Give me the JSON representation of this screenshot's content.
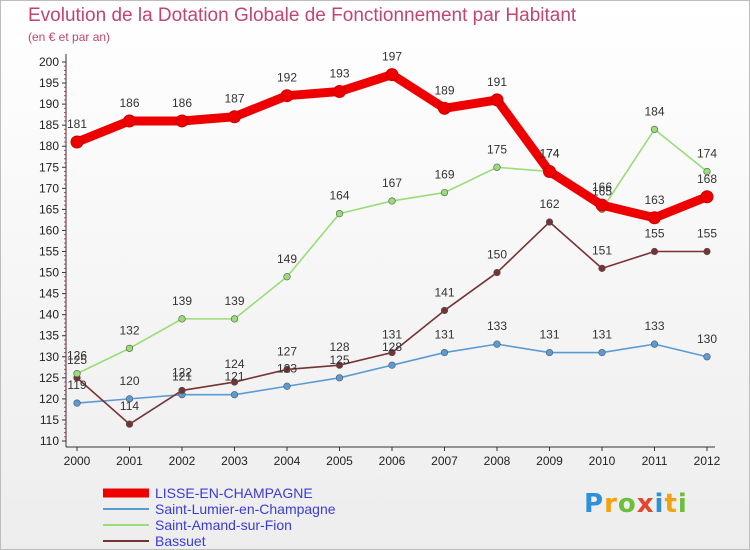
{
  "chart_data": {
    "type": "line",
    "title": "Evolution de la Dotation Globale de Fonctionnement par Habitant",
    "subtitle": "(en € et par an)",
    "xlabel": "",
    "ylabel": "",
    "x": [
      "2000",
      "2001",
      "2002",
      "2003",
      "2004",
      "2005",
      "2006",
      "2007",
      "2008",
      "2009",
      "2010",
      "2011",
      "2012"
    ],
    "ylim": [
      110,
      200
    ],
    "yticks": [
      "110",
      "115",
      "120",
      "125",
      "130",
      "135",
      "140",
      "145",
      "150",
      "155",
      "160",
      "165",
      "170",
      "175",
      "180",
      "185",
      "190",
      "195",
      "200"
    ],
    "grid": false,
    "legend_position": "bottom-left",
    "series": [
      {
        "name": "LISSE-EN-CHAMPAGNE",
        "color": "#ee0000",
        "values": [
          181,
          186,
          186,
          187,
          192,
          193,
          197,
          189,
          191,
          174,
          166,
          163,
          168
        ]
      },
      {
        "name": "Saint-Lumier-en-Champagne",
        "color": "#5b9bd5",
        "values": [
          119,
          120,
          121,
          121,
          123,
          125,
          128,
          131,
          133,
          131,
          131,
          133,
          130
        ]
      },
      {
        "name": "Saint-Amand-sur-Fion",
        "color": "#99dd77",
        "values": [
          126,
          132,
          139,
          139,
          149,
          164,
          167,
          169,
          175,
          174,
          165,
          184,
          174
        ]
      },
      {
        "name": "Bassuet",
        "color": "#773333",
        "values": [
          125,
          114,
          122,
          124,
          127,
          128,
          131,
          141,
          150,
          162,
          151,
          155,
          155
        ]
      }
    ]
  },
  "logo": {
    "text": "Proxiti"
  }
}
